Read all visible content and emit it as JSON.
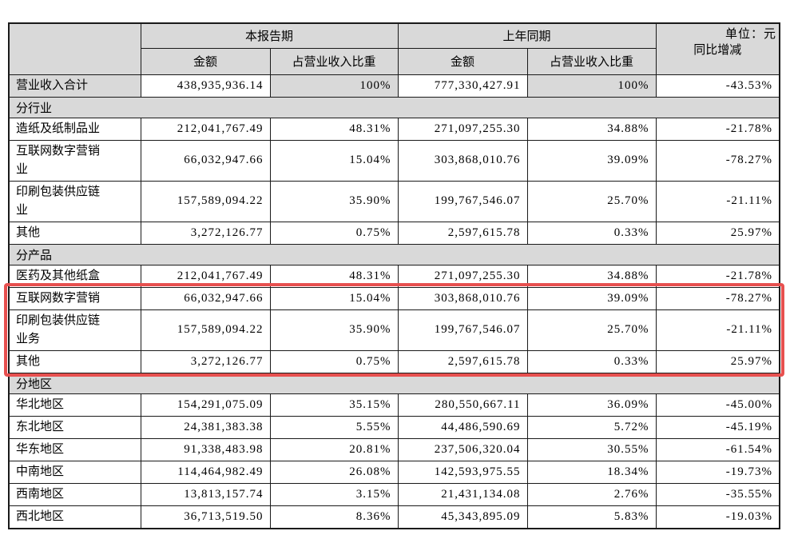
{
  "unit_label": "单位：元",
  "colors": {
    "shaded_bg": "#d9d9d9",
    "table_border": "#1a1a1a",
    "highlight_border": "#e7504f"
  },
  "table": {
    "header": {
      "current_period": "本报告期",
      "prior_period": "上年同期",
      "yoy": "同比增减",
      "amount": "金额",
      "pct_of_revenue": "占营业收入比重"
    },
    "total_row": {
      "label": "营业收入合计",
      "cur_amount": "438,935,936.14",
      "cur_pct": "100%",
      "prior_amount": "777,330,427.91",
      "prior_pct": "100%",
      "yoy": "-43.53%"
    },
    "sections": [
      {
        "title": "分行业",
        "rows": [
          {
            "label": "造纸及纸制品业",
            "cur_amount": "212,041,767.49",
            "cur_pct": "48.31%",
            "prior_amount": "271,097,255.30",
            "prior_pct": "34.88%",
            "yoy": "-21.78%",
            "highlight": false
          },
          {
            "label": "互联网数字营销业",
            "cur_amount": "66,032,947.66",
            "cur_pct": "15.04%",
            "prior_amount": "303,868,010.76",
            "prior_pct": "39.09%",
            "yoy": "-78.27%",
            "highlight": false
          },
          {
            "label": "印刷包装供应链业",
            "cur_amount": "157,589,094.22",
            "cur_pct": "35.90%",
            "prior_amount": "199,767,546.07",
            "prior_pct": "25.70%",
            "yoy": "-21.11%",
            "highlight": false
          },
          {
            "label": "其他",
            "cur_amount": "3,272,126.77",
            "cur_pct": "0.75%",
            "prior_amount": "2,597,615.78",
            "prior_pct": "0.33%",
            "yoy": "25.97%",
            "highlight": false
          }
        ]
      },
      {
        "title": "分产品",
        "rows": [
          {
            "label": "医药及其他纸盒",
            "cur_amount": "212,041,767.49",
            "cur_pct": "48.31%",
            "prior_amount": "271,097,255.30",
            "prior_pct": "34.88%",
            "yoy": "-21.78%",
            "highlight": true
          },
          {
            "label": "互联网数字营销",
            "cur_amount": "66,032,947.66",
            "cur_pct": "15.04%",
            "prior_amount": "303,868,010.76",
            "prior_pct": "39.09%",
            "yoy": "-78.27%",
            "highlight": true
          },
          {
            "label": "印刷包装供应链业务",
            "cur_amount": "157,589,094.22",
            "cur_pct": "35.90%",
            "prior_amount": "199,767,546.07",
            "prior_pct": "25.70%",
            "yoy": "-21.11%",
            "highlight": true
          },
          {
            "label": "其他",
            "cur_amount": "3,272,126.77",
            "cur_pct": "0.75%",
            "prior_amount": "2,597,615.78",
            "prior_pct": "0.33%",
            "yoy": "25.97%",
            "highlight": false
          }
        ]
      },
      {
        "title": "分地区",
        "rows": [
          {
            "label": "华北地区",
            "cur_amount": "154,291,075.09",
            "cur_pct": "35.15%",
            "prior_amount": "280,550,667.11",
            "prior_pct": "36.09%",
            "yoy": "-45.00%",
            "highlight": false
          },
          {
            "label": "东北地区",
            "cur_amount": "24,381,383.38",
            "cur_pct": "5.55%",
            "prior_amount": "44,486,590.69",
            "prior_pct": "5.72%",
            "yoy": "-45.19%",
            "highlight": false
          },
          {
            "label": "华东地区",
            "cur_amount": "91,338,483.98",
            "cur_pct": "20.81%",
            "prior_amount": "237,506,320.04",
            "prior_pct": "30.55%",
            "yoy": "-61.54%",
            "highlight": false
          },
          {
            "label": "中南地区",
            "cur_amount": "114,464,982.49",
            "cur_pct": "26.08%",
            "prior_amount": "142,593,975.55",
            "prior_pct": "18.34%",
            "yoy": "-19.73%",
            "highlight": false
          },
          {
            "label": "西南地区",
            "cur_amount": "13,813,157.74",
            "cur_pct": "3.15%",
            "prior_amount": "21,431,134.08",
            "prior_pct": "2.76%",
            "yoy": "-35.55%",
            "highlight": false
          },
          {
            "label": "西北地区",
            "cur_amount": "36,713,519.50",
            "cur_pct": "8.36%",
            "prior_amount": "45,343,895.09",
            "prior_pct": "5.83%",
            "yoy": "-19.03%",
            "highlight": false
          }
        ]
      }
    ]
  }
}
